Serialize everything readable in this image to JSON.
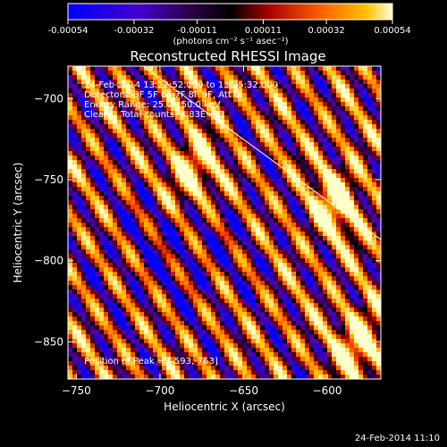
{
  "chart_data": {
    "type": "heatmap",
    "title": "Reconstructed RHESSI Image",
    "xlabel": "Heliocentric X (arcsec)",
    "ylabel": "Heliocentric Y (arcsec)",
    "xlim": [
      -755,
      -568
    ],
    "ylim": [
      -873,
      -680
    ],
    "xticks": [
      -750,
      -700,
      -650,
      -600
    ],
    "yticks": [
      -700,
      -750,
      -800,
      -850
    ],
    "colorbar": {
      "range": [
        -0.00054,
        0.00054
      ],
      "tick_values": [
        -0.00054,
        -0.00032,
        -0.00011,
        0.00011,
        0.00032,
        0.00054
      ],
      "tick_labels": [
        "-0.00054",
        "-0.00032",
        "-0.00011",
        "0.00011",
        "0.00032",
        "0.00054"
      ],
      "unit_label": "(photons cm⁻² s⁻¹ asec⁻²)",
      "colormap": [
        "#0000ff",
        "#5500aa",
        "#000000",
        "#a00000",
        "#ff5000",
        "#ffc000",
        "#ffffcc"
      ]
    },
    "annotations": {
      "time_range": "24-Feb-2014 13:22:52.000 to 13:25:32.000",
      "detectors": "Detectors: 3F 5F 6F 7F 8F 9F, Att 0",
      "energy": "Energy Range: 25.0 - 50.0 keV",
      "clean": "Clean    Total counts: 4.83E+03",
      "peak": "Position of Peak = [-593,-763]"
    },
    "peak": [
      -593,
      -763
    ],
    "limb_line": [
      [
        -710,
        -680
      ],
      [
        -568,
        -787
      ]
    ],
    "bright_sources": [
      {
        "x": -682,
        "y": -745,
        "level": 1.0
      },
      {
        "x": -596,
        "y": -763,
        "level": 1.0
      },
      {
        "x": -582,
        "y": -850,
        "level": 0.95
      }
    ]
  },
  "footer": {
    "timestamp": "24-Feb-2014 11:10"
  }
}
